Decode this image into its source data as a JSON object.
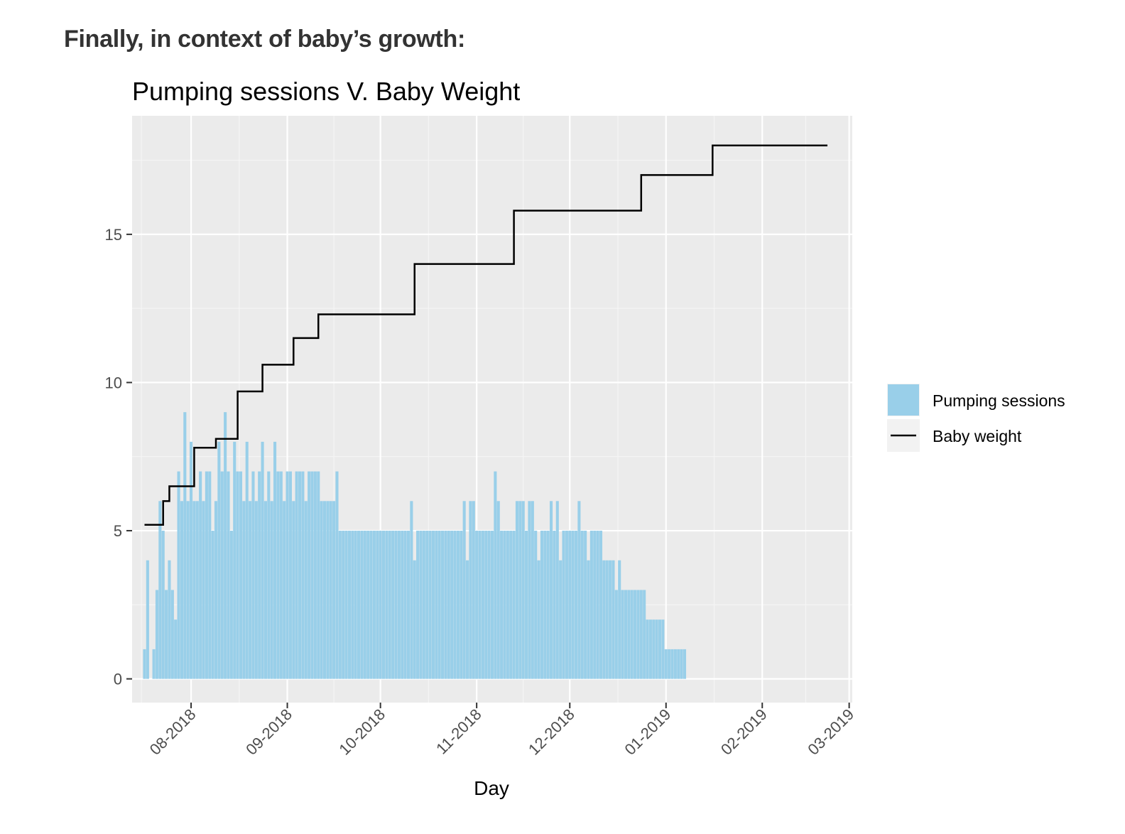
{
  "heading": "Finally, in context of baby’s growth:",
  "colors": {
    "panel_bg": "#ebebeb",
    "grid_major": "#ffffff",
    "grid_minor": "#f5f5f5",
    "bar_fill": "#99cfe9",
    "line": "#000000"
  },
  "chart_data": {
    "type": "bar",
    "title": "Pumping sessions V. Baby Weight",
    "xlabel": "Day",
    "ylabel": "",
    "x_axis": {
      "scale": "date",
      "range": [
        "2018-07-13",
        "2019-03-02"
      ],
      "tick_labels": [
        "08-2018",
        "09-2018",
        "10-2018",
        "11-2018",
        "12-2018",
        "01-2019",
        "02-2019",
        "03-2019"
      ]
    },
    "y_axis": {
      "range": [
        -0.8,
        19
      ],
      "ticks": [
        0,
        5,
        10,
        15
      ]
    },
    "grid": true,
    "legend": {
      "position": "right",
      "entries": [
        {
          "label": "Pumping sessions",
          "kind": "bar"
        },
        {
          "label": "Baby weight",
          "kind": "line"
        }
      ]
    },
    "series": [
      {
        "name": "Pumping sessions",
        "type": "bar",
        "start_date": "2018-07-17",
        "values": [
          1,
          4,
          0,
          1,
          3,
          6,
          5,
          3,
          4,
          3,
          2,
          7,
          6,
          9,
          6,
          8,
          6,
          6,
          7,
          6,
          7,
          7,
          5,
          6,
          8,
          7,
          9,
          7,
          5,
          8,
          7,
          7,
          6,
          8,
          6,
          7,
          6,
          7,
          8,
          6,
          7,
          6,
          8,
          7,
          7,
          6,
          7,
          7,
          6,
          7,
          7,
          7,
          6,
          7,
          7,
          7,
          7,
          6,
          6,
          6,
          6,
          6,
          7,
          5,
          5,
          5,
          5,
          5,
          5,
          5,
          5,
          5,
          5,
          5,
          5,
          5,
          5,
          5,
          5,
          5,
          5,
          5,
          5,
          5,
          5,
          5,
          6,
          4,
          5,
          5,
          5,
          5,
          5,
          5,
          5,
          5,
          5,
          5,
          5,
          5,
          5,
          5,
          5,
          6,
          4,
          6,
          6,
          5,
          5,
          5,
          5,
          5,
          5,
          7,
          6,
          5,
          5,
          5,
          5,
          5,
          6,
          6,
          6,
          5,
          6,
          6,
          5,
          4,
          5,
          5,
          5,
          6,
          5,
          6,
          4,
          5,
          5,
          5,
          5,
          5,
          6,
          5,
          5,
          4,
          5,
          5,
          5,
          5,
          4,
          4,
          4,
          4,
          3,
          4,
          3,
          3,
          3,
          3,
          3,
          3,
          3,
          3,
          2,
          2,
          2,
          2,
          2,
          2,
          1,
          1,
          1,
          1,
          1,
          1,
          1
        ]
      },
      {
        "name": "Baby weight",
        "type": "step",
        "points": [
          [
            "2018-07-17",
            5.2
          ],
          [
            "2018-07-23",
            6.0
          ],
          [
            "2018-07-25",
            6.5
          ],
          [
            "2018-08-02",
            7.8
          ],
          [
            "2018-08-09",
            8.1
          ],
          [
            "2018-08-16",
            9.7
          ],
          [
            "2018-08-24",
            10.6
          ],
          [
            "2018-09-03",
            11.5
          ],
          [
            "2018-09-11",
            12.3
          ],
          [
            "2018-10-12",
            14.0
          ],
          [
            "2018-11-13",
            15.8
          ],
          [
            "2018-12-24",
            17.0
          ],
          [
            "2019-01-16",
            18.0
          ],
          [
            "2019-02-22",
            18.0
          ]
        ]
      }
    ]
  }
}
